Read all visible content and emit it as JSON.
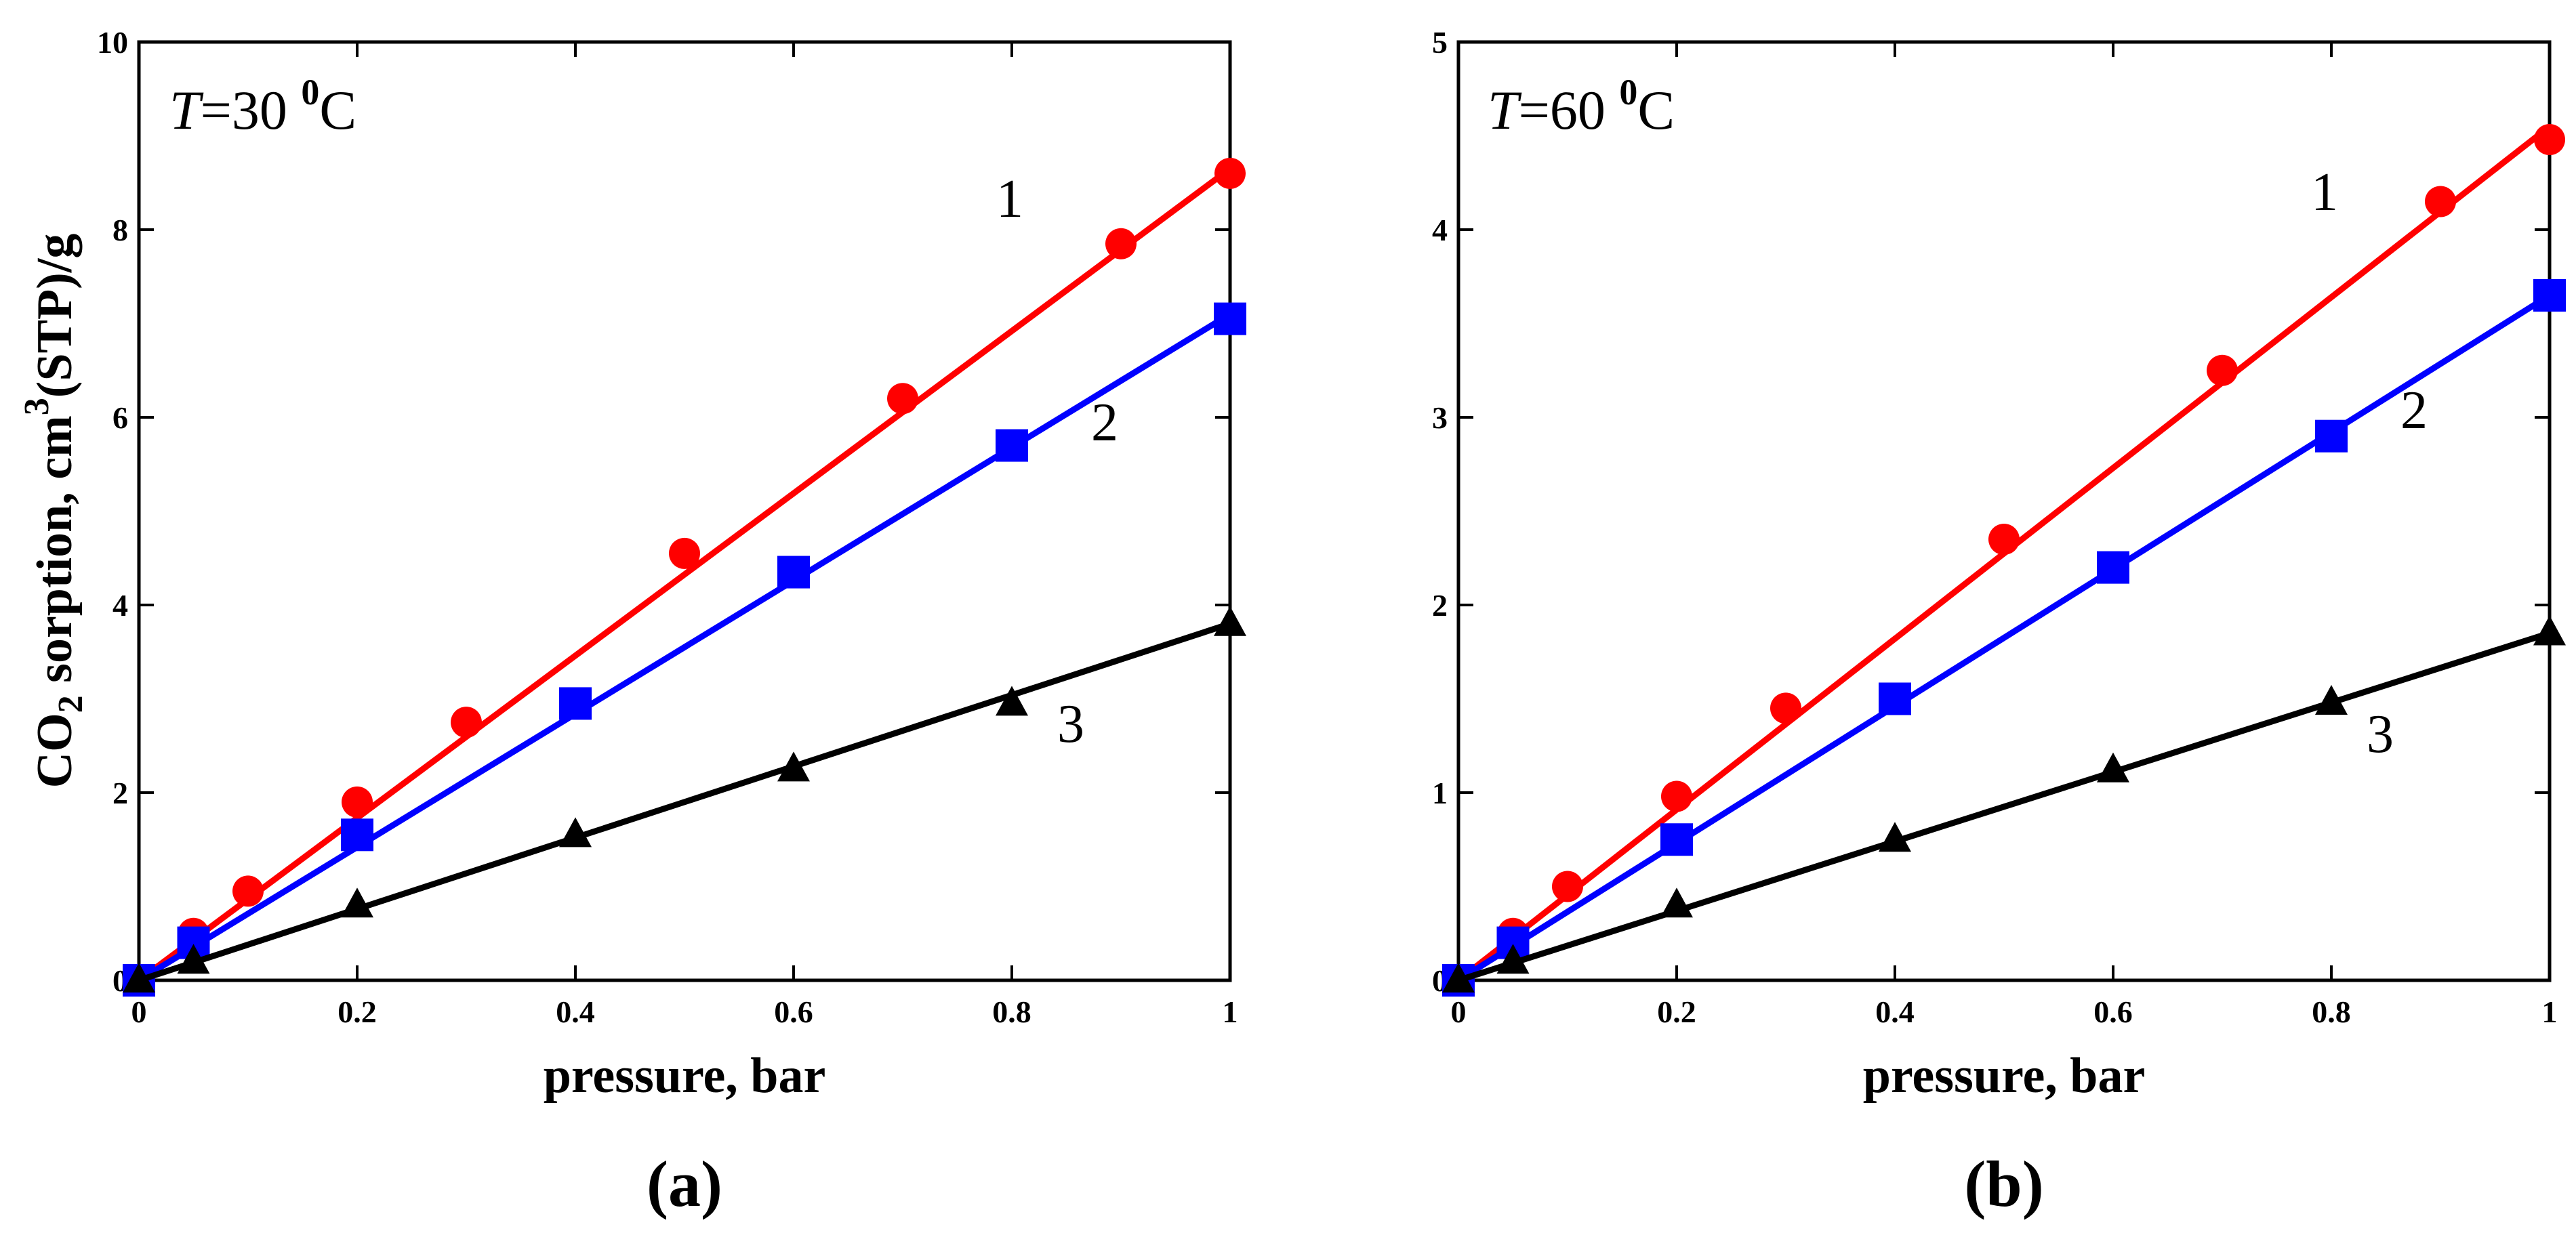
{
  "chart_data": [
    {
      "type": "line",
      "panel_label": "(a)",
      "annotation": {
        "var": "T",
        "text": "=30 ",
        "sup": "0",
        "unit": "C"
      },
      "xlabel": "pressure, bar",
      "ylabel": {
        "pre": "CO",
        "sub": "2",
        "mid": " sorption, cm",
        "sup": "3",
        "post": "(STP)/g"
      },
      "xlim": [
        0,
        1
      ],
      "ylim": [
        0,
        10
      ],
      "xticks": [
        0,
        0.2,
        0.4,
        0.6,
        0.8,
        1
      ],
      "xtick_labels": [
        "0",
        "0.2",
        "0.4",
        "0.6",
        "0.8",
        "1"
      ],
      "yticks": [
        0,
        2,
        4,
        6,
        8,
        10
      ],
      "ytick_labels": [
        "0",
        "2",
        "4",
        "6",
        "8",
        "10"
      ],
      "series": [
        {
          "name": "1",
          "color": "#ff0000",
          "marker": "circle",
          "x": [
            0,
            0.05,
            0.1,
            0.2,
            0.3,
            0.5,
            0.7,
            0.9,
            1.0
          ],
          "y": [
            0,
            0.5,
            0.95,
            1.9,
            2.75,
            4.55,
            6.2,
            7.85,
            8.6
          ],
          "fit": [
            [
              0,
              0
            ],
            [
              1,
              8.65
            ]
          ]
        },
        {
          "name": "2",
          "color": "#0000ff",
          "marker": "square",
          "x": [
            0,
            0.05,
            0.2,
            0.4,
            0.6,
            0.8,
            1.0
          ],
          "y": [
            0,
            0.4,
            1.55,
            2.95,
            4.35,
            5.7,
            7.05
          ],
          "fit": [
            [
              0,
              0
            ],
            [
              1,
              7.1
            ]
          ]
        },
        {
          "name": "3",
          "color": "#000000",
          "marker": "triangle",
          "x": [
            0,
            0.05,
            0.2,
            0.4,
            0.6,
            0.8,
            1.0
          ],
          "y": [
            0,
            0.2,
            0.8,
            1.55,
            2.25,
            2.95,
            3.8
          ],
          "fit": [
            [
              0,
              0
            ],
            [
              1,
              3.8
            ]
          ]
        }
      ]
    },
    {
      "type": "line",
      "panel_label": "(b)",
      "annotation": {
        "var": "T",
        "text": "=60 ",
        "sup": "0",
        "unit": "C"
      },
      "xlabel": "pressure, bar",
      "ylabel": null,
      "xlim": [
        0,
        1
      ],
      "ylim": [
        0,
        5
      ],
      "xticks": [
        0,
        0.2,
        0.4,
        0.6,
        0.8,
        1
      ],
      "xtick_labels": [
        "0",
        "0.2",
        "0.4",
        "0.6",
        "0.8",
        "1"
      ],
      "yticks": [
        0,
        1,
        2,
        3,
        4,
        5
      ],
      "ytick_labels": [
        "0",
        "1",
        "2",
        "3",
        "4",
        "5"
      ],
      "series": [
        {
          "name": "1",
          "color": "#ff0000",
          "marker": "circle",
          "x": [
            0,
            0.05,
            0.1,
            0.2,
            0.3,
            0.5,
            0.7,
            0.9,
            1.0
          ],
          "y": [
            0,
            0.25,
            0.5,
            0.98,
            1.45,
            2.35,
            3.25,
            4.15,
            4.48
          ],
          "fit": [
            [
              0,
              0
            ],
            [
              1,
              4.55
            ]
          ]
        },
        {
          "name": "2",
          "color": "#0000ff",
          "marker": "square",
          "x": [
            0,
            0.05,
            0.2,
            0.4,
            0.6,
            0.8,
            1.0
          ],
          "y": [
            0,
            0.2,
            0.75,
            1.5,
            2.2,
            2.9,
            3.65
          ],
          "fit": [
            [
              0,
              0
            ],
            [
              1,
              3.65
            ]
          ]
        },
        {
          "name": "3",
          "color": "#000000",
          "marker": "triangle",
          "x": [
            0,
            0.05,
            0.2,
            0.4,
            0.6,
            0.8,
            1.0
          ],
          "y": [
            0,
            0.1,
            0.4,
            0.75,
            1.12,
            1.48,
            1.85
          ],
          "fit": [
            [
              0,
              0
            ],
            [
              1,
              1.85
            ]
          ]
        }
      ]
    }
  ]
}
